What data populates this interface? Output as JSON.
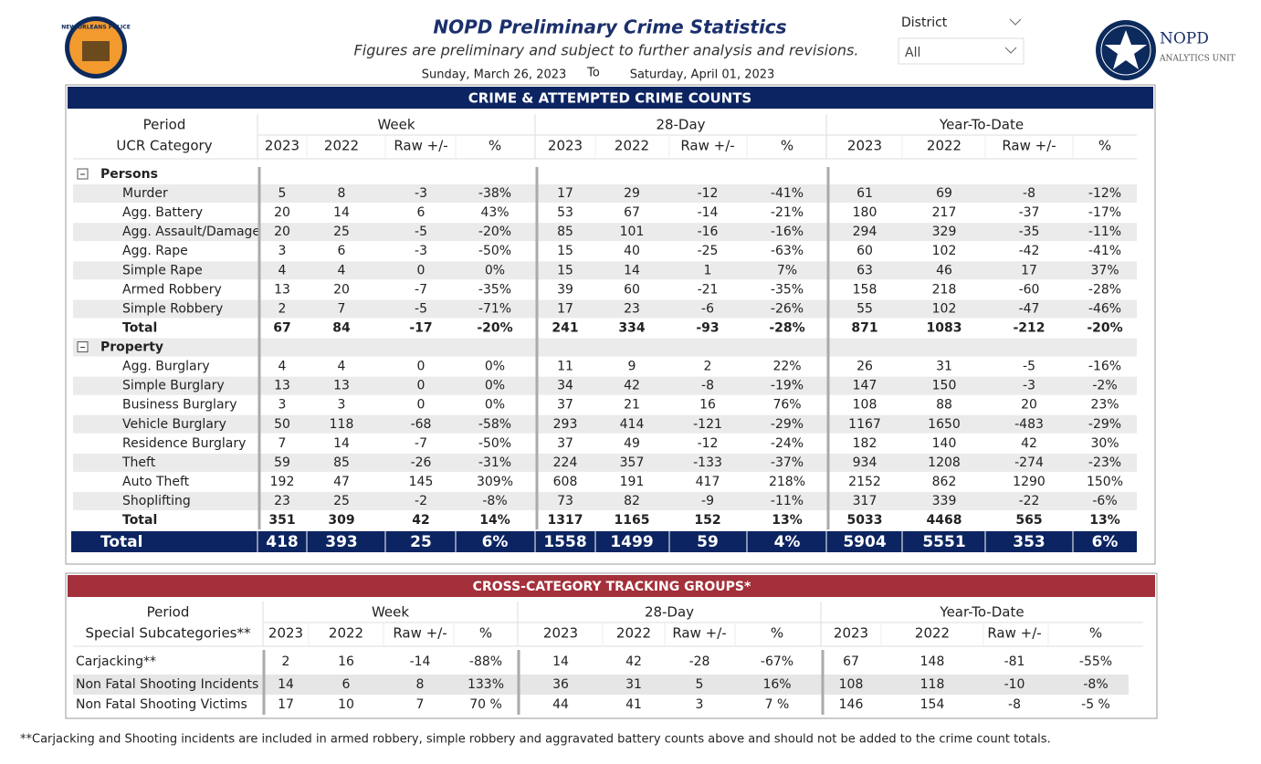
{
  "header": {
    "title": "NOPD Preliminary Crime Statistics",
    "subtitle": "Figures are preliminary and subject to further analysis and revisions.",
    "start_date": "Sunday, March 26, 2023",
    "to": "To",
    "end_date": "Saturday, April 01, 2023"
  },
  "filter": {
    "label": "District",
    "value": "All"
  },
  "badge_text": "NEW ORLEANS POLICE",
  "logo_right": {
    "name": "NOPD",
    "unit": "ANALYTICS UNIT"
  },
  "table1": {
    "title": "CRIME & ATTEMPTED CRIME COUNTS",
    "period_label": "Period",
    "category_label": "UCR Category",
    "groups": [
      "Week",
      "28-Day",
      "Year-To-Date"
    ],
    "columns": [
      "2023",
      "2022",
      "Raw +/-",
      "%"
    ],
    "sections": [
      {
        "name": "Persons",
        "rows": [
          {
            "label": "Murder",
            "values": [
              "5",
              "8",
              "-3",
              "-38%",
              "17",
              "29",
              "-12",
              "-41%",
              "61",
              "69",
              "-8",
              "-12%"
            ]
          },
          {
            "label": "Agg. Battery",
            "values": [
              "20",
              "14",
              "6",
              "43%",
              "53",
              "67",
              "-14",
              "-21%",
              "180",
              "217",
              "-37",
              "-17%"
            ]
          },
          {
            "label": "Agg. Assault/Damage",
            "values": [
              "20",
              "25",
              "-5",
              "-20%",
              "85",
              "101",
              "-16",
              "-16%",
              "294",
              "329",
              "-35",
              "-11%"
            ]
          },
          {
            "label": "Agg. Rape",
            "values": [
              "3",
              "6",
              "-3",
              "-50%",
              "15",
              "40",
              "-25",
              "-63%",
              "60",
              "102",
              "-42",
              "-41%"
            ]
          },
          {
            "label": "Simple Rape",
            "values": [
              "4",
              "4",
              "0",
              "0%",
              "15",
              "14",
              "1",
              "7%",
              "63",
              "46",
              "17",
              "37%"
            ]
          },
          {
            "label": "Armed Robbery",
            "values": [
              "13",
              "20",
              "-7",
              "-35%",
              "39",
              "60",
              "-21",
              "-35%",
              "158",
              "218",
              "-60",
              "-28%"
            ]
          },
          {
            "label": "Simple Robbery",
            "values": [
              "2",
              "7",
              "-5",
              "-71%",
              "17",
              "23",
              "-6",
              "-26%",
              "55",
              "102",
              "-47",
              "-46%"
            ]
          }
        ],
        "total": {
          "label": "Total",
          "values": [
            "67",
            "84",
            "-17",
            "-20%",
            "241",
            "334",
            "-93",
            "-28%",
            "871",
            "1083",
            "-212",
            "-20%"
          ]
        }
      },
      {
        "name": "Property",
        "rows": [
          {
            "label": "Agg. Burglary",
            "values": [
              "4",
              "4",
              "0",
              "0%",
              "11",
              "9",
              "2",
              "22%",
              "26",
              "31",
              "-5",
              "-16%"
            ]
          },
          {
            "label": "Simple Burglary",
            "values": [
              "13",
              "13",
              "0",
              "0%",
              "34",
              "42",
              "-8",
              "-19%",
              "147",
              "150",
              "-3",
              "-2%"
            ]
          },
          {
            "label": "Business Burglary",
            "values": [
              "3",
              "3",
              "0",
              "0%",
              "37",
              "21",
              "16",
              "76%",
              "108",
              "88",
              "20",
              "23%"
            ]
          },
          {
            "label": "Vehicle Burglary",
            "values": [
              "50",
              "118",
              "-68",
              "-58%",
              "293",
              "414",
              "-121",
              "-29%",
              "1167",
              "1650",
              "-483",
              "-29%"
            ]
          },
          {
            "label": "Residence Burglary",
            "values": [
              "7",
              "14",
              "-7",
              "-50%",
              "37",
              "49",
              "-12",
              "-24%",
              "182",
              "140",
              "42",
              "30%"
            ]
          },
          {
            "label": "Theft",
            "values": [
              "59",
              "85",
              "-26",
              "-31%",
              "224",
              "357",
              "-133",
              "-37%",
              "934",
              "1208",
              "-274",
              "-23%"
            ]
          },
          {
            "label": "Auto Theft",
            "values": [
              "192",
              "47",
              "145",
              "309%",
              "608",
              "191",
              "417",
              "218%",
              "2152",
              "862",
              "1290",
              "150%"
            ]
          },
          {
            "label": "Shoplifting",
            "values": [
              "23",
              "25",
              "-2",
              "-8%",
              "73",
              "82",
              "-9",
              "-11%",
              "317",
              "339",
              "-22",
              "-6%"
            ]
          }
        ],
        "total": {
          "label": "Total",
          "values": [
            "351",
            "309",
            "42",
            "14%",
            "1317",
            "1165",
            "152",
            "13%",
            "5033",
            "4468",
            "565",
            "13%"
          ]
        }
      }
    ],
    "grand_total": {
      "label": "Total",
      "values": [
        "418",
        "393",
        "25",
        "6%",
        "1558",
        "1499",
        "59",
        "4%",
        "5904",
        "5551",
        "353",
        "6%"
      ]
    }
  },
  "table2": {
    "title": "CROSS-CATEGORY TRACKING GROUPS*",
    "period_label": "Period",
    "category_label": "Special Subcategories**",
    "groups": [
      "Week",
      "28-Day",
      "Year-To-Date"
    ],
    "columns": [
      "2023",
      "2022",
      "Raw +/-",
      "%"
    ],
    "rows": [
      {
        "label": "Carjacking**",
        "values": [
          "2",
          "16",
          "-14",
          "-88%",
          "14",
          "42",
          "-28",
          "-67%",
          "67",
          "148",
          "-81",
          "-55%"
        ]
      },
      {
        "label": "Non Fatal Shooting Incidents",
        "values": [
          "14",
          "6",
          "8",
          "133%",
          "36",
          "31",
          "5",
          "16%",
          "108",
          "118",
          "-10",
          "-8%"
        ]
      },
      {
        "label": "Non Fatal Shooting Victims",
        "values": [
          "17",
          "10",
          "7",
          "70 %",
          "44",
          "41",
          "3",
          "7 %",
          "146",
          "154",
          "-8",
          "-5 %"
        ]
      }
    ]
  },
  "footnote": "**Carjacking and Shooting incidents are included in armed robbery, simple robbery and aggravated battery counts above and should not be added to the crime count totals."
}
